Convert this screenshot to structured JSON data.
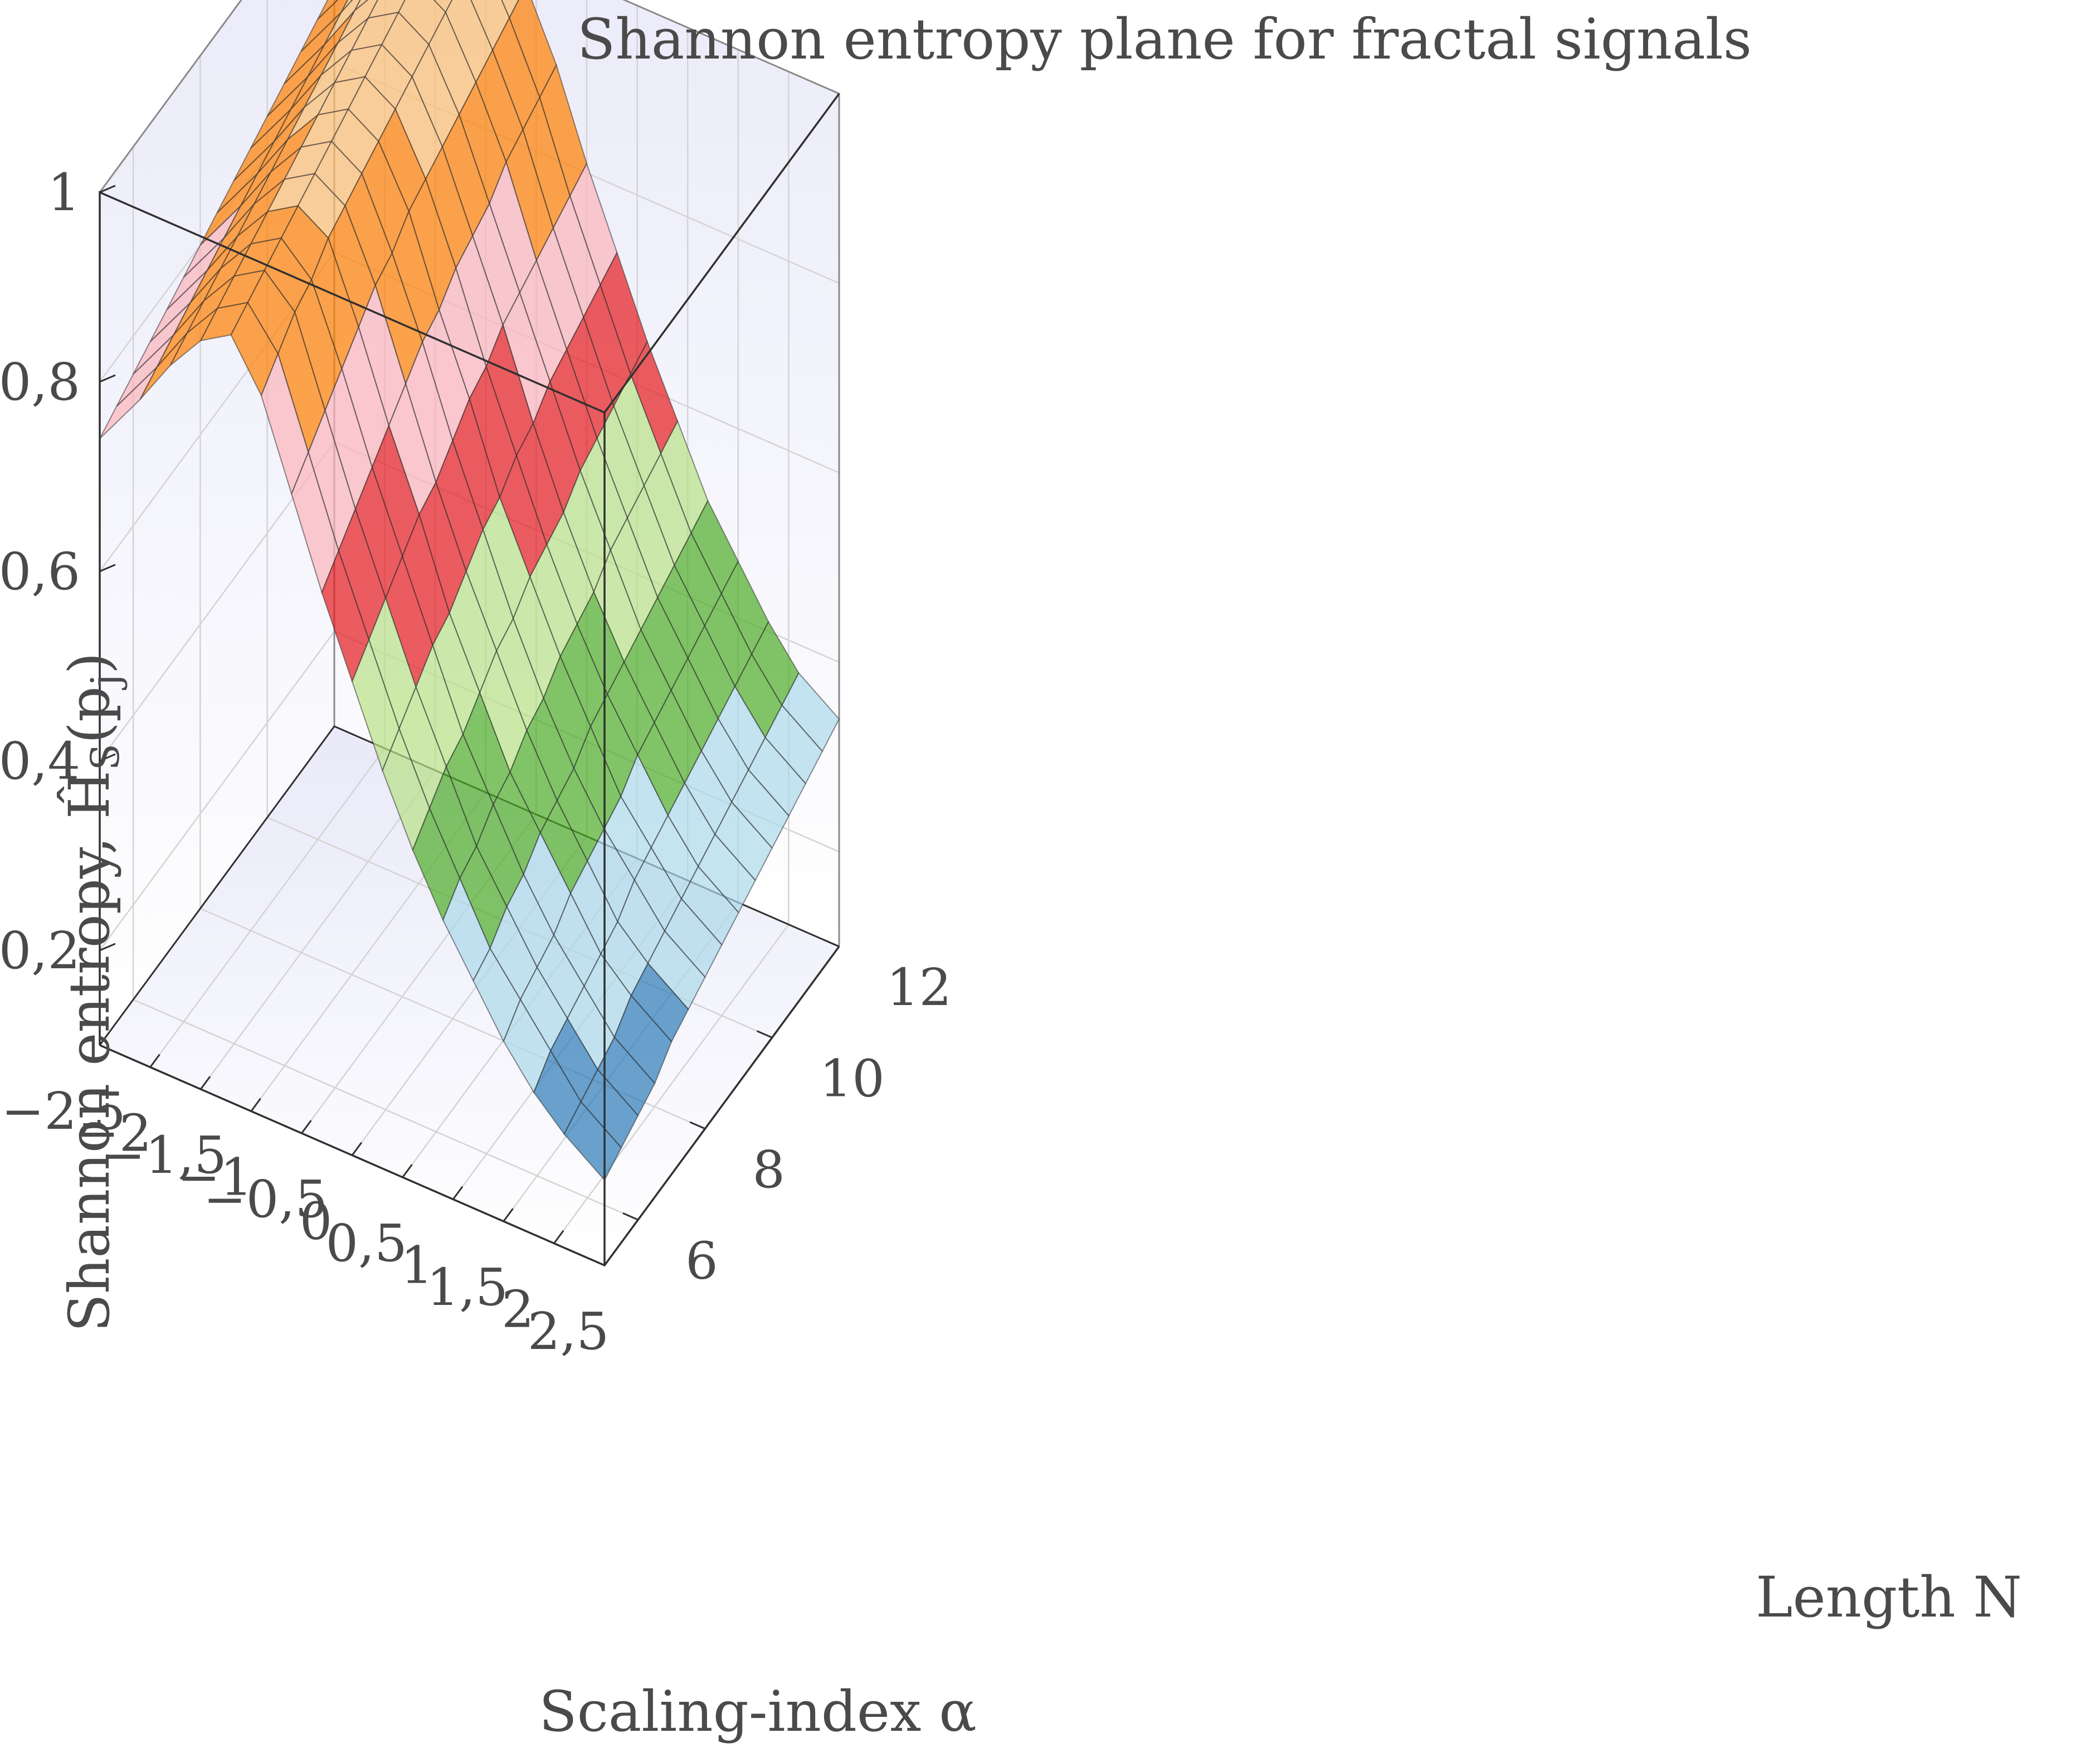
{
  "chart_data": {
    "type": "surface",
    "title": "Shannon entropy plane for fractal signals",
    "xlabel": "Scaling-index α",
    "ylabel": "Length N",
    "zlabel": "Shannon entropy, Ĥ",
    "zlabel_sub": "S",
    "zlabel_tail": "(p",
    "zlabel_sub2": "j",
    "zlabel_end": ")",
    "x_ticks": [
      "−2,5",
      "−2",
      "−1,5",
      "−1",
      "−0,5",
      "0",
      "0,5",
      "1",
      "1,5",
      "2",
      "2,5"
    ],
    "y_ticks": [
      "6",
      "8",
      "10",
      "12"
    ],
    "z_ticks": [
      "0,2",
      "0,4",
      "0,6",
      "0,8",
      "1"
    ],
    "xlim": [
      -2.5,
      2.5
    ],
    "ylim": [
      5,
      12
    ],
    "zlim": [
      0.1,
      1.0
    ],
    "x_grid": [
      -2.5,
      -2.1,
      -1.8,
      -1.5,
      -1.2,
      -0.9,
      -0.6,
      -0.3,
      0.0,
      0.3,
      0.6,
      0.9,
      1.2,
      1.5,
      1.8,
      2.1,
      2.5
    ],
    "y_grid": [
      5,
      5.5,
      6,
      6.5,
      7,
      7.5,
      8,
      8.5,
      9,
      9.5,
      10,
      10.5,
      11,
      11.5,
      12
    ],
    "z_values_by_N": [
      [
        0.74,
        0.8,
        0.85,
        0.89,
        0.91,
        0.86,
        0.77,
        0.68,
        0.6,
        0.52,
        0.45,
        0.39,
        0.34,
        0.29,
        0.25,
        0.22,
        0.19
      ],
      [
        0.75,
        0.81,
        0.86,
        0.9,
        0.92,
        0.88,
        0.79,
        0.7,
        0.62,
        0.54,
        0.47,
        0.41,
        0.35,
        0.31,
        0.27,
        0.23,
        0.2
      ],
      [
        0.76,
        0.82,
        0.87,
        0.91,
        0.93,
        0.9,
        0.81,
        0.72,
        0.64,
        0.56,
        0.49,
        0.42,
        0.37,
        0.32,
        0.28,
        0.24,
        0.21
      ],
      [
        0.77,
        0.83,
        0.88,
        0.92,
        0.94,
        0.91,
        0.83,
        0.74,
        0.66,
        0.58,
        0.5,
        0.44,
        0.38,
        0.33,
        0.29,
        0.25,
        0.22
      ],
      [
        0.78,
        0.84,
        0.89,
        0.93,
        0.95,
        0.93,
        0.85,
        0.76,
        0.68,
        0.59,
        0.52,
        0.45,
        0.4,
        0.35,
        0.3,
        0.27,
        0.24
      ],
      [
        0.79,
        0.85,
        0.9,
        0.94,
        0.96,
        0.94,
        0.87,
        0.78,
        0.69,
        0.61,
        0.54,
        0.47,
        0.41,
        0.36,
        0.31,
        0.28,
        0.25
      ],
      [
        0.8,
        0.86,
        0.91,
        0.95,
        0.97,
        0.95,
        0.88,
        0.8,
        0.71,
        0.63,
        0.55,
        0.48,
        0.42,
        0.37,
        0.33,
        0.29,
        0.26
      ],
      [
        0.81,
        0.87,
        0.92,
        0.96,
        0.98,
        0.96,
        0.9,
        0.81,
        0.73,
        0.64,
        0.57,
        0.5,
        0.44,
        0.38,
        0.34,
        0.3,
        0.27
      ],
      [
        0.82,
        0.88,
        0.93,
        0.97,
        0.99,
        0.97,
        0.91,
        0.83,
        0.74,
        0.66,
        0.58,
        0.51,
        0.45,
        0.4,
        0.35,
        0.31,
        0.28
      ],
      [
        0.83,
        0.89,
        0.94,
        0.98,
        1.0,
        0.98,
        0.92,
        0.84,
        0.76,
        0.67,
        0.59,
        0.52,
        0.46,
        0.41,
        0.36,
        0.32,
        0.29
      ],
      [
        0.84,
        0.9,
        0.95,
        0.99,
        1.01,
        0.99,
        0.93,
        0.85,
        0.77,
        0.69,
        0.61,
        0.54,
        0.47,
        0.42,
        0.37,
        0.33,
        0.3
      ],
      [
        0.85,
        0.91,
        0.96,
        1.0,
        1.02,
        1.0,
        0.94,
        0.87,
        0.78,
        0.7,
        0.62,
        0.55,
        0.48,
        0.43,
        0.38,
        0.34,
        0.31
      ],
      [
        0.86,
        0.92,
        0.97,
        1.01,
        1.03,
        1.01,
        0.95,
        0.88,
        0.79,
        0.71,
        0.63,
        0.56,
        0.49,
        0.44,
        0.39,
        0.35,
        0.32
      ],
      [
        0.87,
        0.93,
        0.98,
        1.02,
        1.04,
        1.02,
        0.96,
        0.89,
        0.8,
        0.72,
        0.64,
        0.57,
        0.5,
        0.45,
        0.4,
        0.36,
        0.33
      ],
      [
        0.88,
        0.94,
        0.99,
        1.03,
        1.05,
        1.03,
        0.97,
        0.9,
        0.81,
        0.73,
        0.65,
        0.58,
        0.51,
        0.46,
        0.41,
        0.37,
        0.34
      ]
    ],
    "colormap": [
      "#2c7bb6",
      "#abd9e9",
      "#4dac26",
      "#b8e186",
      "#e41a1c",
      "#fbb4b9",
      "#ff7f00",
      "#fdbf6f"
    ],
    "colormap_alpha": 0.7,
    "grid": true,
    "background_top": "#e9e9f9",
    "background_bottom": "#ffffff"
  }
}
